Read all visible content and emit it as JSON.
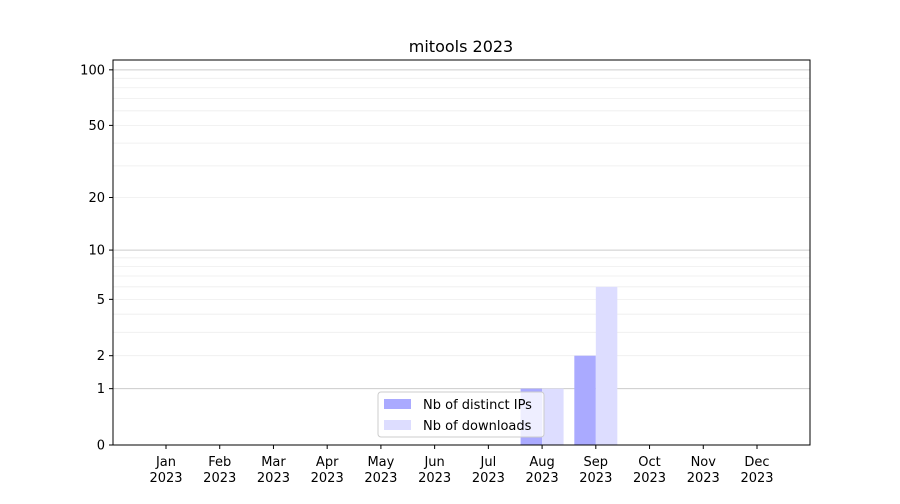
{
  "chart_data": {
    "type": "bar",
    "title": "mitools 2023",
    "xlabel": "",
    "ylabel": "",
    "y_scale": "log(1+y)",
    "ylim": [
      0,
      113
    ],
    "grid": true,
    "legend_placement": "lower-center",
    "categories": [
      "Jan\n2023",
      "Feb\n2023",
      "Mar\n2023",
      "Apr\n2023",
      "May\n2023",
      "Jun\n2023",
      "Jul\n2023",
      "Aug\n2023",
      "Sep\n2023",
      "Oct\n2023",
      "Nov\n2023",
      "Dec\n2023"
    ],
    "category_lines": [
      [
        "Jan",
        "2023"
      ],
      [
        "Feb",
        "2023"
      ],
      [
        "Mar",
        "2023"
      ],
      [
        "Apr",
        "2023"
      ],
      [
        "May",
        "2023"
      ],
      [
        "Jun",
        "2023"
      ],
      [
        "Jul",
        "2023"
      ],
      [
        "Aug",
        "2023"
      ],
      [
        "Sep",
        "2023"
      ],
      [
        "Oct",
        "2023"
      ],
      [
        "Nov",
        "2023"
      ],
      [
        "Dec",
        "2023"
      ]
    ],
    "y_ticks": [
      0,
      1,
      2,
      5,
      10,
      20,
      50,
      100
    ],
    "y_tick_labels": [
      "0",
      "1",
      "2",
      "5",
      "10",
      "20",
      "50",
      "100"
    ],
    "series": [
      {
        "name": "Nb of distinct IPs",
        "color": "#aaaaff",
        "values": [
          0,
          0,
          0,
          0,
          0,
          0,
          0,
          1,
          2,
          0,
          0,
          0
        ]
      },
      {
        "name": "Nb of downloads",
        "color": "#ddddff",
        "values": [
          0,
          0,
          0,
          0,
          0,
          0,
          0,
          1,
          6,
          0,
          0,
          0
        ]
      }
    ]
  }
}
